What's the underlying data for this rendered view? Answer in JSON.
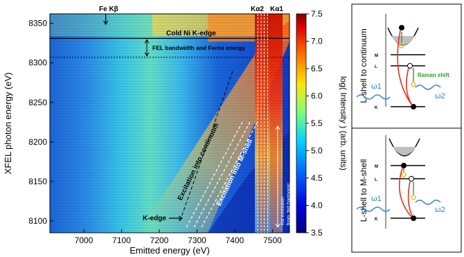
{
  "chart_data": {
    "type": "heatmap",
    "xlabel": "Emitted energy (eV)",
    "ylabel": "XFEL photon energy (eV)",
    "xlim": [
      6910,
      7545
    ],
    "ylim": [
      8085,
      8362
    ],
    "x_ticks": [
      7000,
      7100,
      7200,
      7300,
      7400,
      7500
    ],
    "y_ticks": [
      8100,
      8150,
      8200,
      8250,
      8300,
      8350
    ],
    "colorbar": {
      "label": "log( Intensity )  (arb. units)",
      "range": [
        3.5,
        7.5
      ],
      "ticks": [
        "3.5",
        "4.0",
        "4.5",
        "5.0",
        "5.5",
        "6.0",
        "6.5",
        "7.0",
        "7.5"
      ]
    },
    "top_labels": [
      {
        "text": "Fe Kβ",
        "x": 7058
      },
      {
        "text": "Kα2",
        "x": 7461
      },
      {
        "text": "Kα1",
        "x": 7478
      }
    ],
    "ni_k_edge": 8331,
    "fermi_line": 8307,
    "annotations": {
      "cold_ni": "Cold Ni K-edge",
      "fel_bw": "FEL bandwidth and Fermi energy",
      "exc_continuum": "Excitation into continuum",
      "exc_mshell": "Excitation into M-shell",
      "kedge": "K-edge",
      "third_harmonic_1": "Kα emission",
      "third_harmonic_2": "from 3rd harmonic"
    },
    "diagrams": {
      "top_title": "L-shell to continuum",
      "bottom_title": "L-shell to M-shell",
      "level_M": "M",
      "level_L": "L",
      "level_K": "K",
      "raman": "Raman shift",
      "omega1": "ω1",
      "omega2": "ω2"
    },
    "colors": {
      "accent_red": "#e0301e",
      "accent_blue": "#2a7fd4",
      "accent_green": "#2e9b2e",
      "accent_yellow": "#e8c020"
    }
  }
}
